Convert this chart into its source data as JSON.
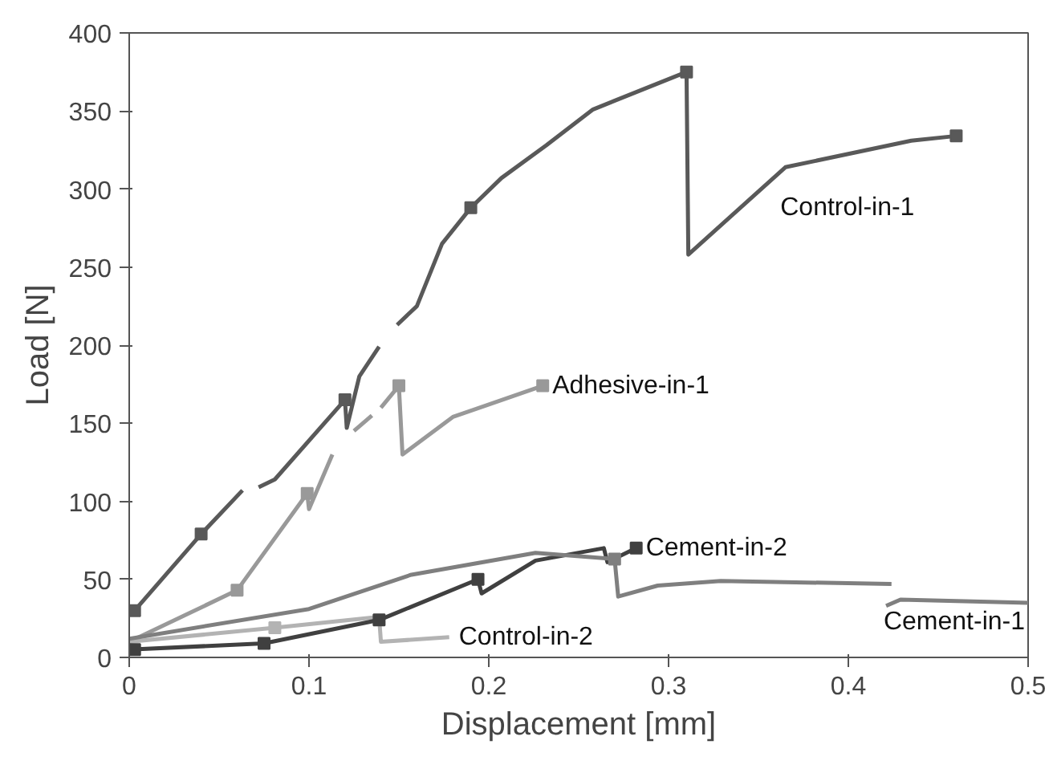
{
  "chart_data": {
    "type": "line",
    "xlabel": "Displacement [mm]",
    "ylabel": "Load [N]",
    "xlim": [
      0,
      0.5
    ],
    "ylim": [
      0,
      400
    ],
    "xticks": [
      0,
      0.1,
      0.2,
      0.3,
      0.4,
      0.5
    ],
    "yticks": [
      0,
      50,
      100,
      150,
      200,
      250,
      300,
      350,
      400
    ],
    "grid": false,
    "legend": false,
    "marker": "none",
    "line_style": "solid",
    "series": [
      {
        "name": "Control-in-1",
        "color": "#595959",
        "x": [
          0.003,
          0.04,
          0.063,
          null,
          0.072,
          0.081,
          0.12,
          0.121,
          0.128,
          0.139,
          null,
          0.149,
          0.16,
          0.174,
          0.19,
          0.207,
          0.232,
          0.258,
          0.31,
          0.311,
          0.365,
          0.435,
          0.46
        ],
        "values": [
          30,
          79,
          107,
          null,
          109,
          114,
          165,
          147,
          180,
          199,
          null,
          213,
          225,
          265,
          288,
          307,
          328,
          351,
          375,
          258,
          314,
          331,
          334
        ]
      },
      {
        "type": "scatter",
        "marker": "square",
        "color": "#595959",
        "x": [
          0.003,
          0.04,
          0.12,
          0.19,
          0.31,
          0.46
        ],
        "values": [
          30,
          79,
          165,
          288,
          375,
          334
        ]
      },
      {
        "name": "Adhesive-in-1",
        "color": "#999999",
        "x": [
          0.0,
          0.06,
          0.099,
          0.1,
          0.113,
          null,
          0.125,
          0.135,
          null,
          0.14,
          0.15,
          0.152,
          0.18,
          0.23
        ],
        "values": [
          10,
          43,
          105,
          95,
          130,
          null,
          145,
          155,
          null,
          160,
          174,
          130,
          154,
          174
        ]
      },
      {
        "type": "scatter",
        "marker": "square",
        "color": "#999999",
        "x": [
          0.06,
          0.099,
          0.15,
          0.23
        ],
        "values": [
          43,
          105,
          174,
          174
        ]
      },
      {
        "name": "Control-in-2",
        "color": "#b3b3b3",
        "x": [
          0.0,
          0.081,
          0.139,
          0.14,
          0.178
        ],
        "values": [
          10,
          19,
          26,
          10,
          13
        ]
      },
      {
        "type": "scatter",
        "marker": "square",
        "color": "#b3b3b3",
        "x": [
          0.081
        ],
        "values": [
          19
        ]
      },
      {
        "name": "Cement-in-2",
        "color": "#404040",
        "x": [
          0.0,
          0.075,
          0.139,
          0.194,
          0.196,
          0.226,
          0.264,
          0.266,
          0.282
        ],
        "values": [
          5,
          9,
          24,
          50,
          41,
          62,
          70,
          61,
          70
        ]
      },
      {
        "type": "scatter",
        "marker": "square",
        "color": "#404040",
        "x": [
          0.003,
          0.075,
          0.139,
          0.194,
          0.282
        ],
        "values": [
          5,
          9,
          24,
          50,
          70
        ]
      },
      {
        "name": "Cement-in-1",
        "color": "#7f7f7f",
        "x": [
          0.0,
          0.1,
          0.157,
          0.226,
          0.27,
          0.272,
          0.294,
          0.329,
          0.424,
          null,
          0.421,
          0.429,
          0.5
        ],
        "values": [
          12,
          31,
          53,
          67,
          63,
          39,
          46,
          49,
          47,
          null,
          33,
          37,
          35
        ]
      },
      {
        "type": "scatter",
        "marker": "square",
        "color": "#7f7f7f",
        "x": [
          0.27
        ],
        "values": [
          63
        ]
      }
    ]
  }
}
